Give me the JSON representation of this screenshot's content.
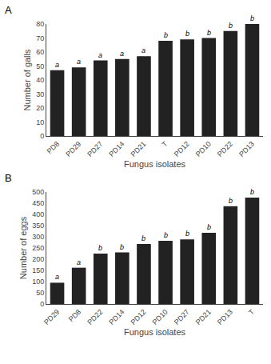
{
  "chart_data": [
    {
      "type": "bar",
      "title": "A",
      "categories": [
        "PD8",
        "PD29",
        "PD27",
        "PD14",
        "PD21",
        "T",
        "PD12",
        "PD10",
        "PD22",
        "PD13"
      ],
      "values": [
        47,
        49,
        54,
        55,
        57,
        68,
        69,
        70,
        75,
        80
      ],
      "annotations": [
        {
          "x": "PD8",
          "text": "a"
        },
        {
          "x": "PD29",
          "text": "a"
        },
        {
          "x": "PD27",
          "text": "a"
        },
        {
          "x": "PD14",
          "text": "a"
        },
        {
          "x": "PD21",
          "text": "a"
        },
        {
          "x": "T",
          "text": "b"
        },
        {
          "x": "PD12",
          "text": "b"
        },
        {
          "x": "PD10",
          "text": "b"
        },
        {
          "x": "PD22",
          "text": "b"
        },
        {
          "x": "PD13",
          "text": "b"
        }
      ],
      "ylabel": "Number of galls",
      "xlabel": "Fungus isolates",
      "ylim": [
        0,
        80
      ],
      "yticks": [
        0,
        10,
        20,
        30,
        40,
        50,
        60,
        70,
        80
      ],
      "color": "#222222",
      "grid": false
    },
    {
      "type": "bar",
      "title": "B",
      "categories": [
        "PD29",
        "PD8",
        "PD22",
        "PD14",
        "PD12",
        "PD10",
        "PD27",
        "PD21",
        "PD13",
        "T"
      ],
      "values": [
        95,
        162,
        225,
        230,
        268,
        282,
        288,
        318,
        437,
        475
      ],
      "annotations": [
        {
          "x": "PD29",
          "text": "a"
        },
        {
          "x": "PD8",
          "text": "a"
        },
        {
          "x": "PD22",
          "text": "b"
        },
        {
          "x": "PD14",
          "text": "b"
        },
        {
          "x": "PD12",
          "text": "b"
        },
        {
          "x": "PD10",
          "text": "b"
        },
        {
          "x": "PD27",
          "text": "b"
        },
        {
          "x": "PD21",
          "text": "b"
        },
        {
          "x": "PD13",
          "text": "b"
        },
        {
          "x": "T",
          "text": "b"
        }
      ],
      "ylabel": "Number of eggs",
      "xlabel": "Fungus isolates",
      "ylim": [
        0,
        500
      ],
      "yticks": [
        0,
        50,
        100,
        150,
        200,
        250,
        300,
        350,
        400,
        450,
        500
      ],
      "color": "#222222",
      "grid": false
    }
  ]
}
